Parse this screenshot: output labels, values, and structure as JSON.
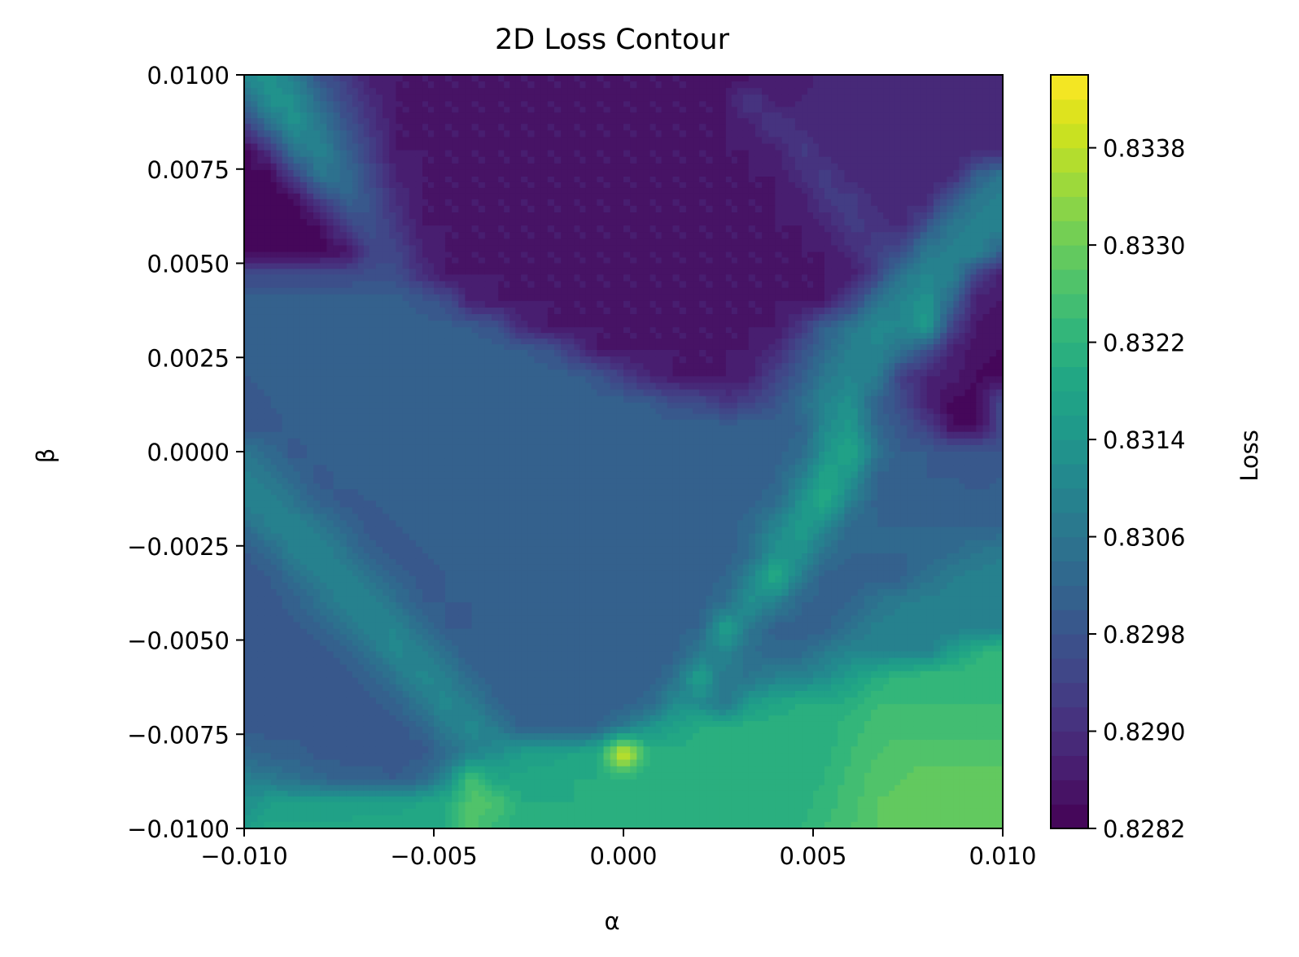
{
  "chart_data": {
    "type": "heatmap",
    "subtype": "filled-contour",
    "title": "2D Loss Contour",
    "xlabel": "α",
    "ylabel": "β",
    "colorbar_label": "Loss",
    "colormap": "viridis",
    "xlim": [
      -0.01,
      0.01
    ],
    "ylim": [
      -0.01,
      0.01
    ],
    "x_ticks": [
      -0.01,
      -0.005,
      0.0,
      0.005,
      0.01
    ],
    "x_tick_labels": [
      "−0.010",
      "−0.005",
      "0.000",
      "0.005",
      "0.010"
    ],
    "y_ticks": [
      0.01,
      0.0075,
      0.005,
      0.0025,
      0.0,
      -0.0025,
      -0.005,
      -0.0075,
      -0.01
    ],
    "y_tick_labels": [
      "0.0100",
      "0.0075",
      "0.0050",
      "0.0025",
      "0.0000",
      "−0.0025",
      "−0.0050",
      "−0.0075",
      "−0.0100"
    ],
    "colorbar_range": [
      0.8282,
      0.8344
    ],
    "colorbar_ticks": [
      0.8282,
      0.829,
      0.8298,
      0.8306,
      0.8314,
      0.8322,
      0.833,
      0.8338
    ],
    "colorbar_tick_labels": [
      "0.8282",
      "0.8290",
      "0.8298",
      "0.8306",
      "0.8314",
      "0.8322",
      "0.8330",
      "0.8338"
    ],
    "levels": 31,
    "grid": false,
    "x_values": [
      -0.01,
      -0.0093,
      -0.0087,
      -0.008,
      -0.0073,
      -0.0067,
      -0.006,
      -0.0053,
      -0.0047,
      -0.004,
      -0.0033,
      -0.0027,
      -0.002,
      -0.0013,
      -0.0007,
      0.0,
      0.0007,
      0.0013,
      0.002,
      0.0027,
      0.0033,
      0.004,
      0.0047,
      0.0053,
      0.006,
      0.0067,
      0.0073,
      0.008,
      0.0087,
      0.0093,
      0.01
    ],
    "y_values": [
      0.01,
      0.0093,
      0.0087,
      0.008,
      0.0073,
      0.0067,
      0.006,
      0.0053,
      0.0047,
      0.004,
      0.0033,
      0.0027,
      0.002,
      0.0013,
      0.0007,
      0.0,
      -0.0007,
      -0.0013,
      -0.002,
      -0.0027,
      -0.0033,
      -0.004,
      -0.0047,
      -0.0053,
      -0.006,
      -0.0067,
      -0.0073,
      -0.008,
      -0.0087,
      -0.0093,
      -0.01
    ],
    "z_values": [
      [
        0.8312,
        0.8313,
        0.8308,
        0.8298,
        0.8293,
        0.8287,
        0.8286,
        0.8286,
        0.8286,
        0.8286,
        0.8286,
        0.8286,
        0.8286,
        0.8286,
        0.8286,
        0.8286,
        0.8286,
        0.8286,
        0.8286,
        0.8285,
        0.8285,
        0.8286,
        0.8287,
        0.8289,
        0.8289,
        0.8289,
        0.8289,
        0.8289,
        0.8289,
        0.8289,
        0.8289
      ],
      [
        0.8303,
        0.8313,
        0.8313,
        0.8303,
        0.8295,
        0.829,
        0.8286,
        0.8286,
        0.8286,
        0.8286,
        0.8286,
        0.8286,
        0.8286,
        0.8286,
        0.8286,
        0.8286,
        0.8286,
        0.8286,
        0.8286,
        0.8286,
        0.8293,
        0.8287,
        0.8288,
        0.8289,
        0.8289,
        0.8289,
        0.8289,
        0.8289,
        0.8289,
        0.8289,
        0.8289
      ],
      [
        0.8294,
        0.8305,
        0.8313,
        0.8307,
        0.8298,
        0.8292,
        0.8286,
        0.8286,
        0.8286,
        0.8286,
        0.8286,
        0.8286,
        0.8286,
        0.8286,
        0.8286,
        0.8286,
        0.8286,
        0.8286,
        0.8286,
        0.8286,
        0.8287,
        0.8293,
        0.8289,
        0.8289,
        0.8289,
        0.8289,
        0.8289,
        0.8289,
        0.8289,
        0.8289,
        0.8289
      ],
      [
        0.8283,
        0.8292,
        0.8306,
        0.831,
        0.8301,
        0.8294,
        0.8286,
        0.8286,
        0.8286,
        0.8286,
        0.8286,
        0.8286,
        0.8286,
        0.8286,
        0.8286,
        0.8286,
        0.8286,
        0.8286,
        0.8286,
        0.8286,
        0.8286,
        0.8287,
        0.8293,
        0.8289,
        0.8289,
        0.8289,
        0.8289,
        0.8289,
        0.8289,
        0.8289,
        0.8289
      ],
      [
        0.8283,
        0.8283,
        0.8293,
        0.8306,
        0.8304,
        0.8296,
        0.8288,
        0.8286,
        0.8286,
        0.8286,
        0.8286,
        0.8286,
        0.8286,
        0.8286,
        0.8286,
        0.8286,
        0.8286,
        0.8286,
        0.8286,
        0.8286,
        0.8286,
        0.8286,
        0.829,
        0.8293,
        0.8289,
        0.8289,
        0.8289,
        0.8289,
        0.8289,
        0.8301,
        0.8307
      ],
      [
        0.8283,
        0.8283,
        0.8283,
        0.8294,
        0.8302,
        0.8298,
        0.829,
        0.8286,
        0.8286,
        0.8286,
        0.8286,
        0.8286,
        0.8286,
        0.8286,
        0.8286,
        0.8286,
        0.8286,
        0.8286,
        0.8286,
        0.8286,
        0.8286,
        0.8286,
        0.8287,
        0.8292,
        0.8293,
        0.8289,
        0.8289,
        0.8289,
        0.83,
        0.8307,
        0.8309
      ],
      [
        0.8283,
        0.8283,
        0.8283,
        0.8284,
        0.8294,
        0.8298,
        0.8292,
        0.8286,
        0.8286,
        0.8286,
        0.8286,
        0.8286,
        0.8286,
        0.8286,
        0.8286,
        0.8286,
        0.8286,
        0.8286,
        0.8286,
        0.8286,
        0.8286,
        0.8286,
        0.8286,
        0.8288,
        0.8293,
        0.8291,
        0.8289,
        0.8298,
        0.8307,
        0.8309,
        0.831
      ],
      [
        0.8283,
        0.8283,
        0.8283,
        0.8283,
        0.8285,
        0.8294,
        0.8295,
        0.8288,
        0.8286,
        0.8286,
        0.8286,
        0.8286,
        0.8286,
        0.8286,
        0.8286,
        0.8286,
        0.8286,
        0.8286,
        0.8286,
        0.8286,
        0.8286,
        0.8286,
        0.8286,
        0.8286,
        0.8289,
        0.8294,
        0.8297,
        0.8307,
        0.8309,
        0.831,
        0.83
      ],
      [
        0.8296,
        0.8296,
        0.8296,
        0.8296,
        0.8296,
        0.8297,
        0.8297,
        0.829,
        0.8286,
        0.8286,
        0.8286,
        0.8286,
        0.8286,
        0.8286,
        0.8286,
        0.8286,
        0.8286,
        0.8286,
        0.8286,
        0.8286,
        0.8286,
        0.8286,
        0.8286,
        0.8286,
        0.8286,
        0.8295,
        0.8306,
        0.831,
        0.8309,
        0.8295,
        0.8287
      ],
      [
        0.8301,
        0.8301,
        0.8301,
        0.8301,
        0.8301,
        0.8301,
        0.8301,
        0.8299,
        0.8297,
        0.8287,
        0.8286,
        0.8286,
        0.8286,
        0.8286,
        0.8286,
        0.8286,
        0.8286,
        0.8286,
        0.8286,
        0.8286,
        0.8286,
        0.8286,
        0.8286,
        0.8286,
        0.8294,
        0.8306,
        0.831,
        0.8314,
        0.8302,
        0.8287,
        0.8286
      ],
      [
        0.8301,
        0.8301,
        0.8301,
        0.8301,
        0.8301,
        0.8301,
        0.8301,
        0.8301,
        0.8301,
        0.83,
        0.8298,
        0.8289,
        0.8286,
        0.8286,
        0.8286,
        0.8286,
        0.8286,
        0.8286,
        0.8286,
        0.8286,
        0.8286,
        0.8286,
        0.8292,
        0.8301,
        0.8307,
        0.8311,
        0.831,
        0.8315,
        0.8294,
        0.8286,
        0.8285
      ],
      [
        0.8301,
        0.8301,
        0.8301,
        0.8301,
        0.8301,
        0.8301,
        0.8301,
        0.8301,
        0.8301,
        0.8301,
        0.8301,
        0.83,
        0.8299,
        0.8292,
        0.8286,
        0.8286,
        0.8286,
        0.8286,
        0.8286,
        0.8286,
        0.8286,
        0.8289,
        0.8297,
        0.8303,
        0.8309,
        0.831,
        0.8306,
        0.8298,
        0.8287,
        0.8285,
        0.8284
      ],
      [
        0.83,
        0.8301,
        0.8301,
        0.8301,
        0.8301,
        0.8301,
        0.8301,
        0.8301,
        0.8301,
        0.8301,
        0.8301,
        0.8301,
        0.8301,
        0.8301,
        0.8299,
        0.8293,
        0.8288,
        0.8286,
        0.8286,
        0.8286,
        0.8287,
        0.8294,
        0.83,
        0.8307,
        0.831,
        0.8308,
        0.8294,
        0.8288,
        0.8287,
        0.8284,
        0.8283
      ],
      [
        0.8299,
        0.83,
        0.8301,
        0.8301,
        0.8301,
        0.8301,
        0.8301,
        0.8301,
        0.8301,
        0.8301,
        0.8301,
        0.8301,
        0.8301,
        0.8301,
        0.8301,
        0.8301,
        0.83,
        0.8297,
        0.8296,
        0.8292,
        0.8294,
        0.8298,
        0.8304,
        0.831,
        0.8313,
        0.8301,
        0.8296,
        0.8288,
        0.8283,
        0.8283,
        0.8296
      ],
      [
        0.8298,
        0.8299,
        0.8301,
        0.8301,
        0.8301,
        0.8301,
        0.8301,
        0.8301,
        0.8301,
        0.8301,
        0.8301,
        0.8301,
        0.8301,
        0.8301,
        0.8301,
        0.8301,
        0.8301,
        0.8301,
        0.8301,
        0.8301,
        0.8301,
        0.8301,
        0.8302,
        0.8311,
        0.8315,
        0.8302,
        0.8299,
        0.8293,
        0.8283,
        0.8283,
        0.8296
      ],
      [
        0.8307,
        0.8303,
        0.8299,
        0.8301,
        0.8301,
        0.8301,
        0.8301,
        0.8301,
        0.8301,
        0.8301,
        0.8301,
        0.8301,
        0.8301,
        0.8301,
        0.8301,
        0.8301,
        0.8301,
        0.8301,
        0.8301,
        0.8301,
        0.8301,
        0.8301,
        0.8303,
        0.8313,
        0.8319,
        0.8306,
        0.83,
        0.83,
        0.8298,
        0.8298,
        0.8298
      ],
      [
        0.8309,
        0.8307,
        0.8303,
        0.8299,
        0.8301,
        0.8301,
        0.8301,
        0.8301,
        0.8301,
        0.8301,
        0.8301,
        0.8301,
        0.8301,
        0.8301,
        0.8301,
        0.8301,
        0.8301,
        0.8301,
        0.8301,
        0.8301,
        0.8301,
        0.8302,
        0.8309,
        0.8318,
        0.8314,
        0.8301,
        0.8301,
        0.83,
        0.83,
        0.8299,
        0.83
      ],
      [
        0.831,
        0.8309,
        0.8306,
        0.8301,
        0.8299,
        0.83,
        0.8301,
        0.8301,
        0.8301,
        0.8301,
        0.8301,
        0.8301,
        0.8301,
        0.8301,
        0.8301,
        0.8301,
        0.8301,
        0.8301,
        0.8301,
        0.8301,
        0.8301,
        0.8303,
        0.8313,
        0.832,
        0.8309,
        0.8301,
        0.8301,
        0.8301,
        0.8301,
        0.8301,
        0.8301
      ],
      [
        0.8304,
        0.8309,
        0.831,
        0.8307,
        0.8302,
        0.8299,
        0.83,
        0.8301,
        0.8301,
        0.8301,
        0.8301,
        0.8301,
        0.8301,
        0.8301,
        0.8301,
        0.8301,
        0.8301,
        0.8301,
        0.8301,
        0.8301,
        0.8303,
        0.831,
        0.8316,
        0.8311,
        0.8302,
        0.8302,
        0.8302,
        0.8302,
        0.8302,
        0.8302,
        0.8302
      ],
      [
        0.8299,
        0.8303,
        0.8309,
        0.831,
        0.8306,
        0.8301,
        0.8299,
        0.83,
        0.8301,
        0.8301,
        0.8301,
        0.8301,
        0.8301,
        0.8301,
        0.8301,
        0.8301,
        0.8301,
        0.8301,
        0.8301,
        0.8301,
        0.8303,
        0.8313,
        0.8313,
        0.8305,
        0.8302,
        0.8302,
        0.8302,
        0.8302,
        0.8304,
        0.8306,
        0.8308
      ],
      [
        0.8299,
        0.83,
        0.8304,
        0.8309,
        0.831,
        0.8305,
        0.8301,
        0.8299,
        0.83,
        0.8301,
        0.8301,
        0.8301,
        0.8301,
        0.8301,
        0.8301,
        0.8301,
        0.8301,
        0.8301,
        0.8301,
        0.8302,
        0.8309,
        0.8321,
        0.8308,
        0.8301,
        0.8301,
        0.8301,
        0.8301,
        0.8305,
        0.8308,
        0.8309,
        0.8309
      ],
      [
        0.8299,
        0.8299,
        0.8301,
        0.8305,
        0.831,
        0.831,
        0.8305,
        0.83,
        0.83,
        0.83,
        0.8301,
        0.8301,
        0.8301,
        0.8301,
        0.8301,
        0.8301,
        0.8301,
        0.8301,
        0.8301,
        0.8304,
        0.8313,
        0.8309,
        0.8302,
        0.8301,
        0.8302,
        0.8306,
        0.8308,
        0.8309,
        0.8309,
        0.8309,
        0.8309
      ],
      [
        0.8299,
        0.8299,
        0.8299,
        0.8301,
        0.8305,
        0.831,
        0.831,
        0.8304,
        0.83,
        0.83,
        0.8301,
        0.8301,
        0.8301,
        0.8301,
        0.8301,
        0.8301,
        0.8301,
        0.8301,
        0.8302,
        0.8318,
        0.8307,
        0.8301,
        0.8301,
        0.8301,
        0.8305,
        0.8309,
        0.8309,
        0.8309,
        0.8309,
        0.8309,
        0.8309
      ],
      [
        0.8299,
        0.8299,
        0.8299,
        0.8299,
        0.8301,
        0.8306,
        0.8311,
        0.8309,
        0.8304,
        0.83,
        0.83,
        0.8301,
        0.8301,
        0.8301,
        0.8301,
        0.8301,
        0.8301,
        0.8301,
        0.8307,
        0.831,
        0.8304,
        0.8303,
        0.8303,
        0.8307,
        0.831,
        0.831,
        0.8309,
        0.8309,
        0.8316,
        0.8321,
        0.8324
      ],
      [
        0.8299,
        0.8299,
        0.8299,
        0.8299,
        0.8299,
        0.8301,
        0.8306,
        0.8311,
        0.8309,
        0.8303,
        0.83,
        0.83,
        0.8301,
        0.8301,
        0.8301,
        0.8301,
        0.8301,
        0.8304,
        0.8317,
        0.8306,
        0.8306,
        0.8309,
        0.831,
        0.8312,
        0.8316,
        0.832,
        0.8323,
        0.8324,
        0.8324,
        0.8324,
        0.8324
      ],
      [
        0.8299,
        0.8299,
        0.8299,
        0.8299,
        0.8299,
        0.8299,
        0.8301,
        0.8307,
        0.8311,
        0.8308,
        0.8302,
        0.83,
        0.8301,
        0.8301,
        0.83,
        0.8301,
        0.8303,
        0.8312,
        0.8311,
        0.8306,
        0.8315,
        0.8319,
        0.832,
        0.832,
        0.8321,
        0.8324,
        0.8324,
        0.8324,
        0.8324,
        0.8324,
        0.8324
      ],
      [
        0.8299,
        0.8299,
        0.8299,
        0.8299,
        0.8299,
        0.8299,
        0.8299,
        0.8302,
        0.8308,
        0.8311,
        0.8307,
        0.8301,
        0.83,
        0.8301,
        0.8302,
        0.8307,
        0.8314,
        0.8317,
        0.832,
        0.8321,
        0.8321,
        0.8321,
        0.8321,
        0.8321,
        0.8323,
        0.8325,
        0.8325,
        0.8325,
        0.8325,
        0.8325,
        0.8325
      ],
      [
        0.8303,
        0.8301,
        0.8301,
        0.8299,
        0.8299,
        0.8299,
        0.8299,
        0.8299,
        0.8303,
        0.8309,
        0.8312,
        0.8316,
        0.8317,
        0.8318,
        0.8319,
        0.8342,
        0.8321,
        0.8321,
        0.8321,
        0.8321,
        0.8321,
        0.8321,
        0.8321,
        0.8321,
        0.8324,
        0.8326,
        0.8327,
        0.8327,
        0.8327,
        0.8327,
        0.8327
      ],
      [
        0.8309,
        0.8307,
        0.8305,
        0.8303,
        0.8301,
        0.8301,
        0.83,
        0.8303,
        0.8311,
        0.8326,
        0.8318,
        0.8319,
        0.8319,
        0.832,
        0.832,
        0.8321,
        0.8321,
        0.8321,
        0.8321,
        0.8321,
        0.8321,
        0.8321,
        0.8321,
        0.8322,
        0.8325,
        0.8327,
        0.8328,
        0.8329,
        0.8329,
        0.8329,
        0.8329
      ],
      [
        0.8312,
        0.8316,
        0.8316,
        0.8316,
        0.8316,
        0.8317,
        0.8317,
        0.8318,
        0.832,
        0.8327,
        0.8326,
        0.832,
        0.832,
        0.832,
        0.8321,
        0.8321,
        0.8321,
        0.8321,
        0.8321,
        0.8321,
        0.8321,
        0.8321,
        0.8321,
        0.8323,
        0.8325,
        0.8328,
        0.8329,
        0.8329,
        0.8329,
        0.8329,
        0.8329
      ],
      [
        0.8316,
        0.8319,
        0.8319,
        0.8319,
        0.8319,
        0.8319,
        0.8319,
        0.832,
        0.832,
        0.8327,
        0.8323,
        0.8321,
        0.8321,
        0.8321,
        0.8321,
        0.8321,
        0.8321,
        0.8321,
        0.8321,
        0.8321,
        0.8321,
        0.8321,
        0.8322,
        0.8324,
        0.8326,
        0.8328,
        0.8329,
        0.8329,
        0.8329,
        0.8329,
        0.8329
      ]
    ]
  }
}
